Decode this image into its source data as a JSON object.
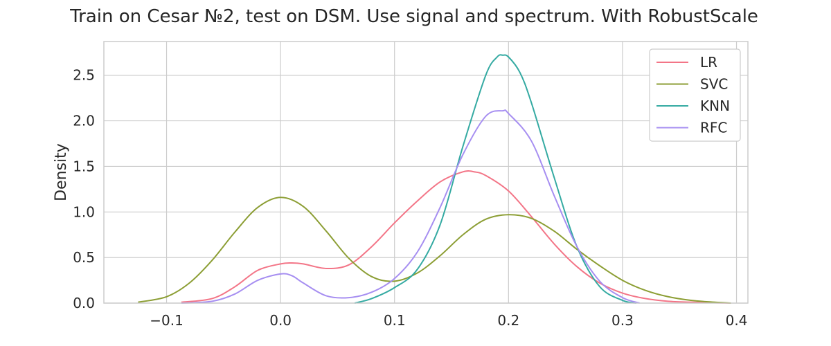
{
  "chart_data": {
    "type": "line",
    "title": "Train on Cesar №2, test on DSM. Use signal and spectrum. With RobustScale",
    "xlabel": "",
    "ylabel": "Density",
    "xlim": [
      -0.155,
      0.41
    ],
    "ylim": [
      0,
      2.87
    ],
    "xticks": [
      -0.1,
      0.0,
      0.1,
      0.2,
      0.3,
      0.4
    ],
    "xtick_labels": [
      "−0.1",
      "0.0",
      "0.1",
      "0.2",
      "0.3",
      "0.4"
    ],
    "yticks": [
      0.0,
      0.5,
      1.0,
      1.5,
      2.0,
      2.5
    ],
    "ytick_labels": [
      "0.0",
      "0.5",
      "1.0",
      "1.5",
      "2.0",
      "2.5"
    ],
    "grid": true,
    "legend_position": "upper right",
    "series": [
      {
        "name": "LR",
        "color": "#f37587",
        "x": [
          -0.087,
          -0.06,
          -0.04,
          -0.02,
          0.0,
          0.01,
          0.02,
          0.04,
          0.06,
          0.08,
          0.1,
          0.12,
          0.14,
          0.16,
          0.17,
          0.18,
          0.2,
          0.22,
          0.24,
          0.26,
          0.28,
          0.3,
          0.32,
          0.34,
          0.36,
          0.38,
          0.395
        ],
        "values": [
          0.01,
          0.05,
          0.18,
          0.36,
          0.43,
          0.44,
          0.43,
          0.38,
          0.42,
          0.62,
          0.88,
          1.12,
          1.33,
          1.44,
          1.44,
          1.4,
          1.23,
          0.95,
          0.65,
          0.4,
          0.22,
          0.11,
          0.05,
          0.02,
          0.01,
          0.004,
          0.0
        ]
      },
      {
        "name": "SVC",
        "color": "#8c9e34",
        "x": [
          -0.125,
          -0.1,
          -0.08,
          -0.06,
          -0.04,
          -0.02,
          0.0,
          0.02,
          0.04,
          0.06,
          0.08,
          0.1,
          0.12,
          0.14,
          0.16,
          0.18,
          0.2,
          0.22,
          0.24,
          0.26,
          0.28,
          0.3,
          0.32,
          0.34,
          0.36,
          0.38,
          0.395
        ],
        "values": [
          0.01,
          0.07,
          0.22,
          0.47,
          0.78,
          1.05,
          1.16,
          1.06,
          0.79,
          0.49,
          0.29,
          0.24,
          0.33,
          0.52,
          0.75,
          0.92,
          0.97,
          0.93,
          0.79,
          0.59,
          0.41,
          0.25,
          0.14,
          0.07,
          0.03,
          0.01,
          0.0
        ]
      },
      {
        "name": "KNN",
        "color": "#34aaa2",
        "x": [
          0.065,
          0.08,
          0.1,
          0.12,
          0.14,
          0.16,
          0.18,
          0.19,
          0.195,
          0.2,
          0.21,
          0.22,
          0.24,
          0.26,
          0.28,
          0.3,
          0.312
        ],
        "values": [
          0.0,
          0.05,
          0.17,
          0.37,
          0.86,
          1.72,
          2.5,
          2.7,
          2.72,
          2.7,
          2.53,
          2.2,
          1.38,
          0.62,
          0.18,
          0.03,
          0.0
        ]
      },
      {
        "name": "RFC",
        "color": "#a68ef1",
        "x": [
          -0.087,
          -0.06,
          -0.04,
          -0.02,
          0.0,
          0.01,
          0.02,
          0.04,
          0.06,
          0.08,
          0.1,
          0.12,
          0.14,
          0.16,
          0.18,
          0.195,
          0.2,
          0.22,
          0.24,
          0.26,
          0.28,
          0.3,
          0.315
        ],
        "values": [
          0.0,
          0.02,
          0.1,
          0.25,
          0.32,
          0.3,
          0.22,
          0.08,
          0.06,
          0.12,
          0.27,
          0.56,
          1.05,
          1.63,
          2.05,
          2.11,
          2.08,
          1.78,
          1.18,
          0.62,
          0.24,
          0.06,
          0.0
        ]
      }
    ]
  }
}
